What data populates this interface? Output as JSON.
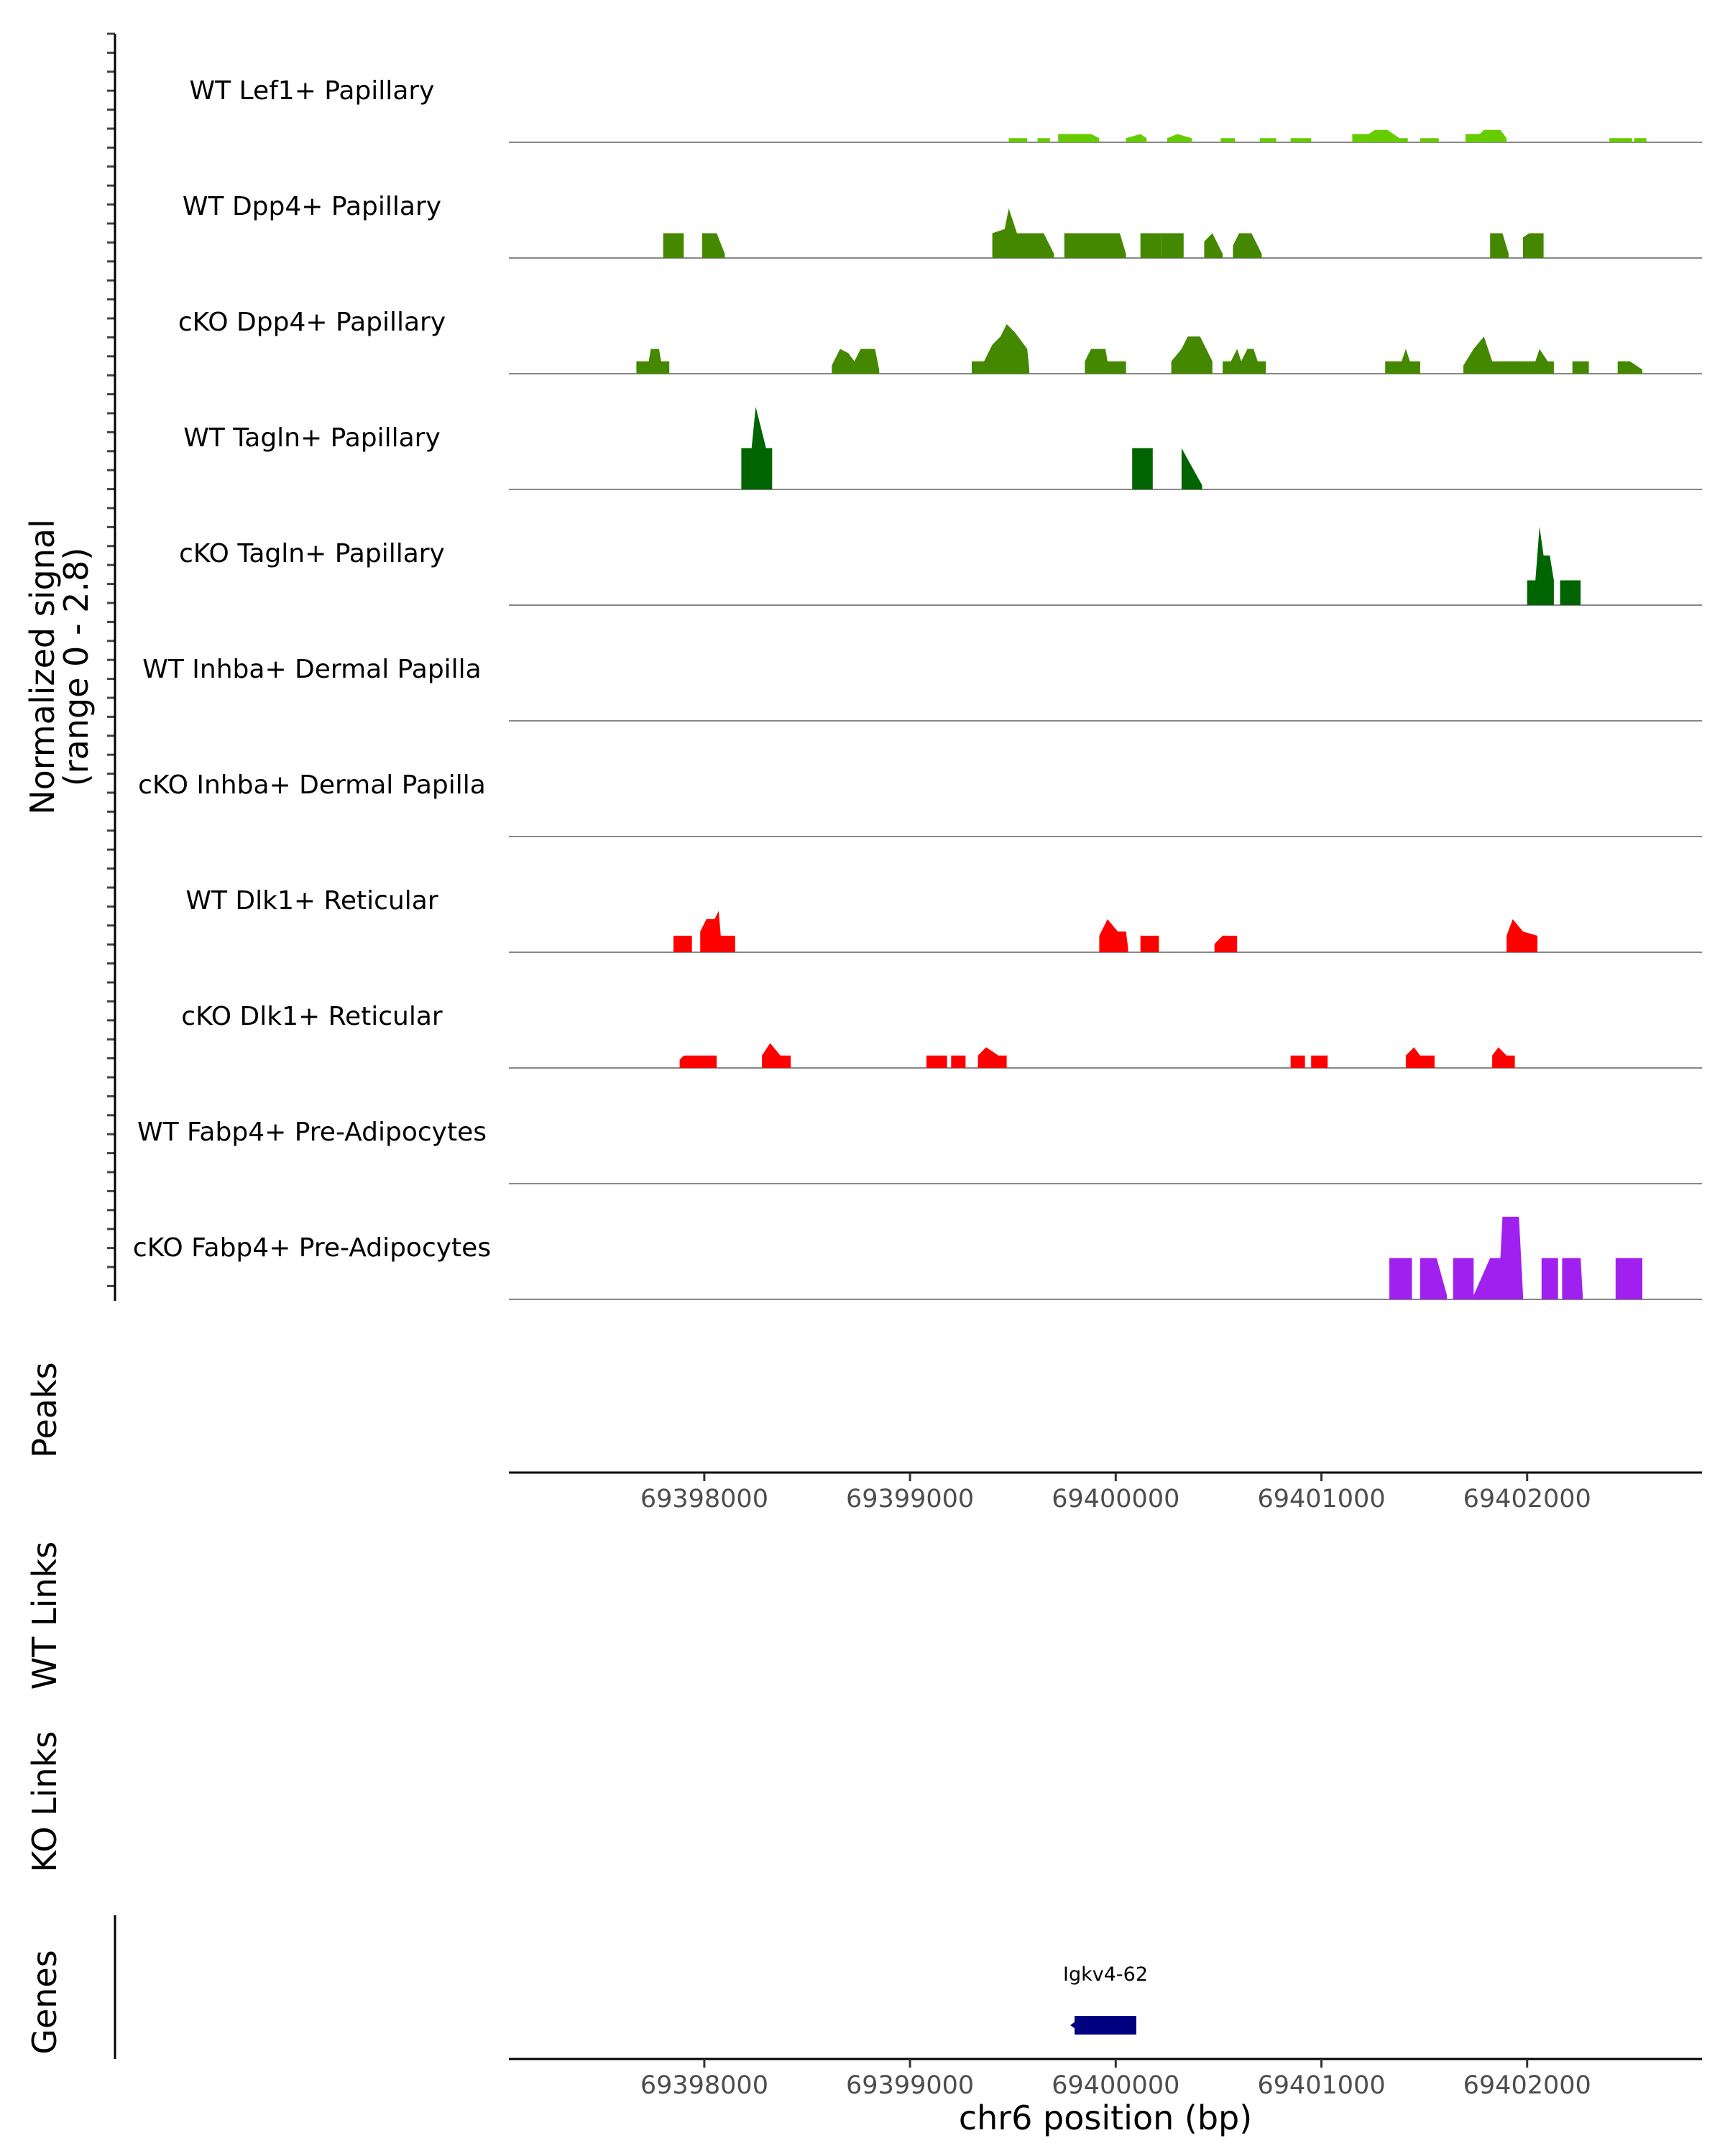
{
  "chart_data": {
    "type": "area",
    "title": "",
    "xlabel": "chr6 position (bp)",
    "ylabel": "Normalized signal\n(range 0 - 2.8)",
    "ylim": [
      0,
      2.8
    ],
    "xlim": [
      69397050,
      69402850
    ],
    "x_ticks": [
      69398000,
      69399000,
      69400000,
      69401000,
      69402000
    ],
    "x_tick_labels": [
      "69398000",
      "69399000",
      "69400000",
      "69401000",
      "69402000"
    ],
    "sections": {
      "peaks": "Peaks",
      "wt_links": "WT Links",
      "ko_links": "KO Links",
      "genes": "Genes"
    },
    "series": [
      {
        "name": "WT Lef1+ Papillary",
        "color": "#66cc00",
        "segments": [
          [
            [
              69399480,
              0.1
            ],
            [
              69399570,
              0.1
            ]
          ],
          [
            [
              69399620,
              0.1
            ],
            [
              69399680,
              0.1
            ]
          ],
          [
            [
              69399720,
              0.2
            ],
            [
              69399880,
              0.2
            ],
            [
              69399920,
              0.1
            ]
          ],
          [
            [
              69400050,
              0.1
            ],
            [
              69400120,
              0.2
            ],
            [
              69400150,
              0.1
            ]
          ],
          [
            [
              69400250,
              0.1
            ],
            [
              69400300,
              0.2
            ],
            [
              69400370,
              0.1
            ]
          ],
          [
            [
              69400510,
              0.1
            ],
            [
              69400580,
              0.1
            ]
          ],
          [
            [
              69400700,
              0.1
            ],
            [
              69400780,
              0.1
            ]
          ],
          [
            [
              69400850,
              0.1
            ],
            [
              69400950,
              0.1
            ]
          ],
          [
            [
              69401150,
              0.2
            ],
            [
              69401230,
              0.2
            ],
            [
              69401260,
              0.3
            ],
            [
              69401320,
              0.3
            ],
            [
              69401380,
              0.1
            ],
            [
              69401420,
              0.1
            ]
          ],
          [
            [
              69401480,
              0.1
            ],
            [
              69401570,
              0.1
            ]
          ],
          [
            [
              69401700,
              0.2
            ],
            [
              69401770,
              0.2
            ],
            [
              69401790,
              0.3
            ],
            [
              69401870,
              0.3
            ],
            [
              69401900,
              0.1
            ]
          ],
          [
            [
              69402400,
              0.1
            ],
            [
              69402510,
              0.1
            ]
          ],
          [
            [
              69402520,
              0.1
            ],
            [
              69402580,
              0.1
            ]
          ]
        ]
      },
      {
        "name": "WT Dpp4+ Papillary",
        "color": "#448800",
        "segments": [
          [
            [
              69397800,
              0.6
            ],
            [
              69397900,
              0.6
            ]
          ],
          [
            [
              69397990,
              0.6
            ],
            [
              69398060,
              0.6
            ],
            [
              69398100,
              0.1
            ]
          ],
          [
            [
              69399400,
              0.6
            ],
            [
              69399460,
              0.7
            ],
            [
              69399480,
              1.2
            ],
            [
              69399520,
              0.6
            ],
            [
              69399650,
              0.6
            ],
            [
              69399700,
              0.1
            ]
          ],
          [
            [
              69399750,
              0.6
            ],
            [
              69400020,
              0.6
            ],
            [
              69400050,
              0.1
            ]
          ],
          [
            [
              69400120,
              0.6
            ],
            [
              69400220,
              0.6
            ]
          ],
          [
            [
              69400220,
              0.6
            ],
            [
              69400330,
              0.6
            ]
          ],
          [
            [
              69400430,
              0.4
            ],
            [
              69400470,
              0.6
            ],
            [
              69400520,
              0.1
            ]
          ],
          [
            [
              69400570,
              0.3
            ],
            [
              69400600,
              0.6
            ],
            [
              69400660,
              0.6
            ],
            [
              69400710,
              0.1
            ]
          ],
          [
            [
              69401820,
              0.6
            ],
            [
              69401880,
              0.6
            ],
            [
              69401910,
              0.1
            ]
          ],
          [
            [
              69401980,
              0.5
            ],
            [
              69402010,
              0.6
            ],
            [
              69402080,
              0.6
            ]
          ]
        ]
      },
      {
        "name": "cKO Dpp4+ Papillary",
        "color": "#448800",
        "segments": [
          [
            [
              69397670,
              0.3
            ],
            [
              69397730,
              0.3
            ],
            [
              69397740,
              0.6
            ],
            [
              69397780,
              0.6
            ],
            [
              69397790,
              0.3
            ],
            [
              69397830,
              0.3
            ]
          ],
          [
            [
              69398620,
              0.2
            ],
            [
              69398660,
              0.6
            ],
            [
              69398700,
              0.5
            ],
            [
              69398730,
              0.3
            ],
            [
              69398760,
              0.6
            ],
            [
              69398830,
              0.6
            ],
            [
              69398850,
              0.1
            ]
          ],
          [
            [
              69399300,
              0.3
            ],
            [
              69399360,
              0.3
            ],
            [
              69399400,
              0.7
            ],
            [
              69399440,
              0.9
            ],
            [
              69399470,
              1.2
            ],
            [
              69399510,
              1.0
            ],
            [
              69399570,
              0.6
            ],
            [
              69399580,
              0.1
            ]
          ],
          [
            [
              69399850,
              0.3
            ],
            [
              69399880,
              0.6
            ],
            [
              69399950,
              0.6
            ],
            [
              69399960,
              0.3
            ],
            [
              69400050,
              0.3
            ]
          ],
          [
            [
              69400270,
              0.3
            ],
            [
              69400320,
              0.6
            ],
            [
              69400350,
              0.9
            ],
            [
              69400410,
              0.9
            ],
            [
              69400440,
              0.6
            ],
            [
              69400470,
              0.3
            ]
          ],
          [
            [
              69400520,
              0.3
            ],
            [
              69400560,
              0.3
            ],
            [
              69400590,
              0.6
            ],
            [
              69400610,
              0.3
            ],
            [
              69400640,
              0.6
            ],
            [
              69400670,
              0.6
            ],
            [
              69400690,
              0.3
            ],
            [
              69400730,
              0.3
            ]
          ],
          [
            [
              69401310,
              0.3
            ],
            [
              69401390,
              0.3
            ],
            [
              69401410,
              0.6
            ],
            [
              69401430,
              0.3
            ],
            [
              69401480,
              0.3
            ]
          ],
          [
            [
              69401690,
              0.2
            ],
            [
              69401740,
              0.6
            ],
            [
              69401790,
              0.9
            ],
            [
              69401830,
              0.3
            ],
            [
              69402040,
              0.3
            ],
            [
              69402060,
              0.6
            ],
            [
              69402100,
              0.3
            ],
            [
              69402130,
              0.3
            ]
          ],
          [
            [
              69402220,
              0.3
            ],
            [
              69402300,
              0.3
            ]
          ],
          [
            [
              69402440,
              0.3
            ],
            [
              69402500,
              0.3
            ],
            [
              69402560,
              0.1
            ]
          ]
        ]
      },
      {
        "name": "WT Tagln+ Papillary",
        "color": "#006400",
        "segments": [
          [
            [
              69398180,
              1.0
            ],
            [
              69398230,
              1.0
            ],
            [
              69398250,
              2.0
            ],
            [
              69398300,
              1.0
            ],
            [
              69398330,
              1.0
            ]
          ],
          [
            [
              69400080,
              1.0
            ],
            [
              69400180,
              1.0
            ]
          ],
          [
            [
              69400320,
              1.0
            ],
            [
              69400420,
              0.1
            ]
          ]
        ]
      },
      {
        "name": "cKO Tagln+ Papillary",
        "color": "#006400",
        "segments": [
          [
            [
              69402000,
              0.6
            ],
            [
              69402040,
              0.6
            ],
            [
              69402060,
              1.9
            ],
            [
              69402080,
              1.2
            ],
            [
              69402110,
              1.2
            ],
            [
              69402130,
              0.6
            ]
          ],
          [
            [
              69402160,
              0.6
            ],
            [
              69402260,
              0.6
            ]
          ]
        ]
      },
      {
        "name": "WT Inhba+ Dermal Papilla",
        "color": "#000000",
        "segments": []
      },
      {
        "name": "cKO Inhba+ Dermal Papilla",
        "color": "#000000",
        "segments": []
      },
      {
        "name": "WT Dlk1+ Reticular",
        "color": "#ff0000",
        "segments": [
          [
            [
              69397850,
              0.4
            ],
            [
              69397940,
              0.4
            ]
          ],
          [
            [
              69397980,
              0.5
            ],
            [
              69398010,
              0.8
            ],
            [
              69398050,
              0.8
            ],
            [
              69398070,
              1.0
            ],
            [
              69398080,
              0.4
            ],
            [
              69398150,
              0.4
            ]
          ],
          [
            [
              69399920,
              0.4
            ],
            [
              69399960,
              0.8
            ],
            [
              69400010,
              0.5
            ],
            [
              69400050,
              0.5
            ],
            [
              69400060,
              0.1
            ]
          ],
          [
            [
              69400120,
              0.4
            ],
            [
              69400210,
              0.4
            ]
          ],
          [
            [
              69400480,
              0.2
            ],
            [
              69400520,
              0.4
            ],
            [
              69400590,
              0.4
            ]
          ],
          [
            [
              69401900,
              0.4
            ],
            [
              69401930,
              0.8
            ],
            [
              69401980,
              0.5
            ],
            [
              69402050,
              0.4
            ]
          ]
        ]
      },
      {
        "name": "cKO Dlk1+ Reticular",
        "color": "#ff0000",
        "segments": [
          [
            [
              69397880,
              0.2
            ],
            [
              69397900,
              0.3
            ],
            [
              69398060,
              0.3
            ]
          ],
          [
            [
              69398280,
              0.3
            ],
            [
              69398320,
              0.6
            ],
            [
              69398370,
              0.3
            ],
            [
              69398420,
              0.3
            ]
          ],
          [
            [
              69399080,
              0.3
            ],
            [
              69399180,
              0.3
            ]
          ],
          [
            [
              69399200,
              0.3
            ],
            [
              69399270,
              0.3
            ]
          ],
          [
            [
              69399330,
              0.3
            ],
            [
              69399370,
              0.5
            ],
            [
              69399430,
              0.3
            ],
            [
              69399470,
              0.3
            ]
          ],
          [
            [
              69400850,
              0.3
            ],
            [
              69400920,
              0.3
            ]
          ],
          [
            [
              69400950,
              0.3
            ],
            [
              69401030,
              0.3
            ]
          ],
          [
            [
              69401410,
              0.3
            ],
            [
              69401450,
              0.5
            ],
            [
              69401480,
              0.3
            ],
            [
              69401550,
              0.3
            ]
          ],
          [
            [
              69401830,
              0.3
            ],
            [
              69401860,
              0.5
            ],
            [
              69401900,
              0.3
            ],
            [
              69401940,
              0.3
            ]
          ]
        ]
      },
      {
        "name": "WT Fabp4+ Pre-Adipocytes",
        "color": "#000000",
        "segments": []
      },
      {
        "name": "cKO Fabp4+ Pre-Adipocytes",
        "color": "#a020f0",
        "segments": [
          [
            [
              69401330,
              1.0
            ],
            [
              69401440,
              1.0
            ]
          ],
          [
            [
              69401480,
              1.0
            ],
            [
              69401560,
              1.0
            ],
            [
              69401610,
              0.1
            ]
          ],
          [
            [
              69401640,
              1.0
            ],
            [
              69401740,
              1.0
            ]
          ],
          [
            [
              69401740,
              0.1
            ],
            [
              69401820,
              1.0
            ],
            [
              69401870,
              1.0
            ],
            [
              69401880,
              2.0
            ],
            [
              69401960,
              2.0
            ],
            [
              69401980,
              0.1
            ]
          ],
          [
            [
              69402070,
              1.0
            ],
            [
              69402150,
              1.0
            ]
          ],
          [
            [
              69402170,
              1.0
            ],
            [
              69402260,
              1.0
            ],
            [
              69402270,
              0.1
            ]
          ],
          [
            [
              69402430,
              1.0
            ],
            [
              69402560,
              1.0
            ]
          ]
        ]
      }
    ],
    "genes": [
      {
        "name": "Igkv4-62",
        "start": 69399800,
        "end": 69400100,
        "color": "#000080"
      }
    ]
  }
}
